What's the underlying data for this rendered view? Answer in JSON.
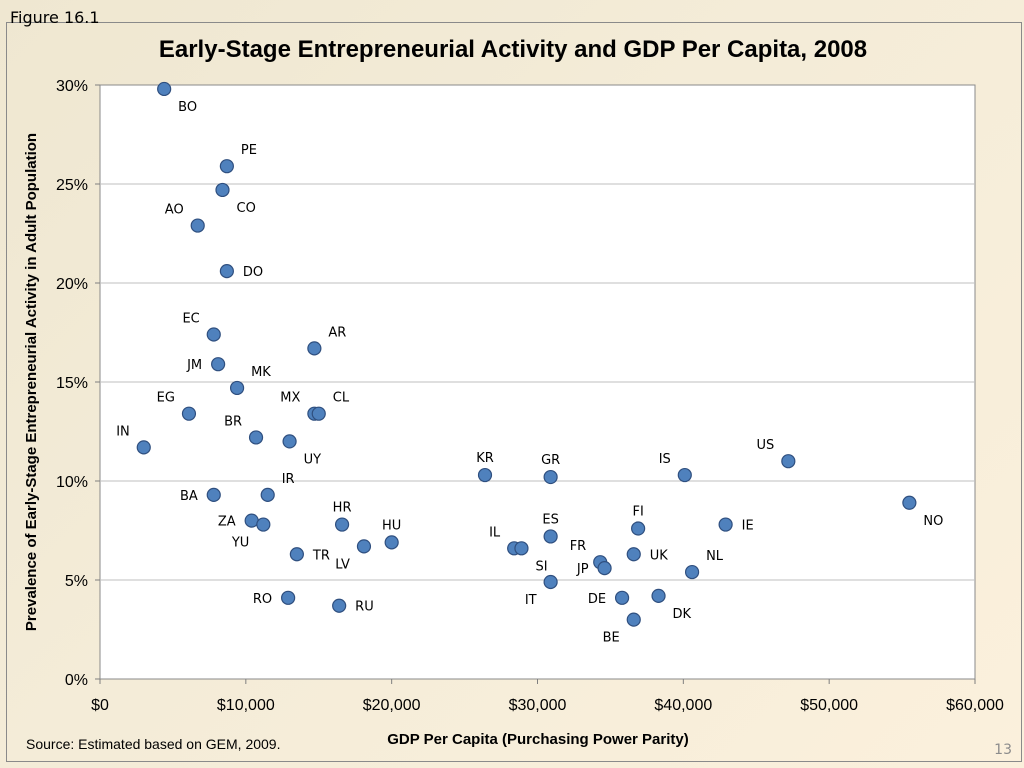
{
  "figure_label": "Figure 16.1",
  "source": "Source: Estimated based on GEM, 2009.",
  "page_number": "13",
  "colors": {
    "marker_fill": "#4f81bd",
    "marker_stroke": "#2f4f7f",
    "gridline": "#bfbfbf",
    "plot_bg": "#ffffff"
  },
  "chart_data": {
    "type": "scatter",
    "title": "Early-Stage Entrepreneurial Activity and GDP Per Capita, 2008",
    "xlabel": "GDP Per Capita (Purchasing Power Parity)",
    "ylabel": "Prevalence of Early-Stage Entrepreneurial Activity in Adult Population",
    "xlim": [
      0,
      60000
    ],
    "ylim": [
      0,
      30
    ],
    "grid": true,
    "x_ticks": [
      {
        "value": 0,
        "label": "$0"
      },
      {
        "value": 10000,
        "label": "$10,000"
      },
      {
        "value": 20000,
        "label": "$20,000"
      },
      {
        "value": 30000,
        "label": "$30,000"
      },
      {
        "value": 40000,
        "label": "$40,000"
      },
      {
        "value": 50000,
        "label": "$50,000"
      },
      {
        "value": 60000,
        "label": "$60,000"
      }
    ],
    "y_ticks": [
      {
        "value": 0,
        "label": "0%"
      },
      {
        "value": 5,
        "label": "5%"
      },
      {
        "value": 10,
        "label": "10%"
      },
      {
        "value": 15,
        "label": "15%"
      },
      {
        "value": 20,
        "label": "20%"
      },
      {
        "value": 25,
        "label": "25%"
      },
      {
        "value": 30,
        "label": "30%"
      }
    ],
    "points": [
      {
        "label": "BO",
        "x": 4400,
        "y": 29.8,
        "label_pos": "below-right"
      },
      {
        "label": "PE",
        "x": 8700,
        "y": 25.9,
        "label_pos": "above-right"
      },
      {
        "label": "CO",
        "x": 8400,
        "y": 24.7,
        "label_pos": "below-right"
      },
      {
        "label": "AO",
        "x": 6700,
        "y": 22.9,
        "label_pos": "above-left"
      },
      {
        "label": "DO",
        "x": 8700,
        "y": 20.6,
        "label_pos": "right"
      },
      {
        "label": "EC",
        "x": 7800,
        "y": 17.4,
        "label_pos": "above-left"
      },
      {
        "label": "AR",
        "x": 14700,
        "y": 16.7,
        "label_pos": "above-right"
      },
      {
        "label": "JM",
        "x": 8100,
        "y": 15.9,
        "label_pos": "left"
      },
      {
        "label": "MK",
        "x": 9400,
        "y": 14.7,
        "label_pos": "above-right"
      },
      {
        "label": "EG",
        "x": 6100,
        "y": 13.4,
        "label_pos": "above-left"
      },
      {
        "label": "MX",
        "x": 14700,
        "y": 13.4,
        "label_pos": "above-left"
      },
      {
        "label": "CL",
        "x": 15000,
        "y": 13.4,
        "label_pos": "above-right"
      },
      {
        "label": "BR",
        "x": 10700,
        "y": 12.2,
        "label_pos": "above-left"
      },
      {
        "label": "UY",
        "x": 13000,
        "y": 12.0,
        "label_pos": "below-right"
      },
      {
        "label": "IN",
        "x": 3000,
        "y": 11.7,
        "label_pos": "above-left"
      },
      {
        "label": "KR",
        "x": 26400,
        "y": 10.3,
        "label_pos": "above"
      },
      {
        "label": "GR",
        "x": 30900,
        "y": 10.2,
        "label_pos": "above"
      },
      {
        "label": "IS",
        "x": 40100,
        "y": 10.3,
        "label_pos": "above-left"
      },
      {
        "label": "US",
        "x": 47200,
        "y": 11.0,
        "label_pos": "above-left"
      },
      {
        "label": "BA",
        "x": 7800,
        "y": 9.3,
        "label_pos": "left"
      },
      {
        "label": "IR",
        "x": 11500,
        "y": 9.3,
        "label_pos": "above-right"
      },
      {
        "label": "NO",
        "x": 55500,
        "y": 8.9,
        "label_pos": "below-right"
      },
      {
        "label": "ZA",
        "x": 10400,
        "y": 8.0,
        "label_pos": "left"
      },
      {
        "label": "YU",
        "x": 11200,
        "y": 7.8,
        "label_pos": "below-left"
      },
      {
        "label": "HR",
        "x": 16600,
        "y": 7.8,
        "label_pos": "above"
      },
      {
        "label": "HU",
        "x": 20000,
        "y": 6.9,
        "label_pos": "above"
      },
      {
        "label": "LV",
        "x": 18100,
        "y": 6.7,
        "label_pos": "below-left"
      },
      {
        "label": "TR",
        "x": 13500,
        "y": 6.3,
        "label_pos": "right"
      },
      {
        "label": "IE",
        "x": 42900,
        "y": 7.8,
        "label_pos": "right"
      },
      {
        "label": "FI",
        "x": 36900,
        "y": 7.6,
        "label_pos": "above"
      },
      {
        "label": "ES",
        "x": 30900,
        "y": 7.2,
        "label_pos": "above"
      },
      {
        "label": "IL",
        "x": 28400,
        "y": 6.6,
        "label_pos": "above-left"
      },
      {
        "label": "SI",
        "x": 28900,
        "y": 6.6,
        "label_pos": "below-right"
      },
      {
        "label": "UK",
        "x": 36600,
        "y": 6.3,
        "label_pos": "right"
      },
      {
        "label": "FR",
        "x": 34300,
        "y": 5.9,
        "label_pos": "above-left"
      },
      {
        "label": "JP",
        "x": 34600,
        "y": 5.6,
        "label_pos": "left"
      },
      {
        "label": "NL",
        "x": 40600,
        "y": 5.4,
        "label_pos": "above-right"
      },
      {
        "label": "IT",
        "x": 30900,
        "y": 4.9,
        "label_pos": "below-left"
      },
      {
        "label": "RO",
        "x": 12900,
        "y": 4.1,
        "label_pos": "left"
      },
      {
        "label": "RU",
        "x": 16400,
        "y": 3.7,
        "label_pos": "right"
      },
      {
        "label": "DE",
        "x": 35800,
        "y": 4.1,
        "label_pos": "left"
      },
      {
        "label": "DK",
        "x": 38300,
        "y": 4.2,
        "label_pos": "below-right"
      },
      {
        "label": "BE",
        "x": 36600,
        "y": 3.0,
        "label_pos": "below-left"
      }
    ]
  }
}
